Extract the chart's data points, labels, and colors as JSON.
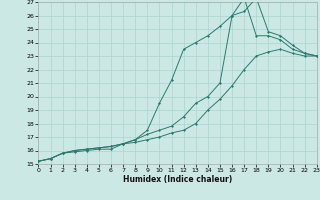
{
  "xlabel": "Humidex (Indice chaleur)",
  "background_color": "#cce8e5",
  "grid_color": "#aad4d0",
  "line_color": "#2a7a6e",
  "xlim": [
    0,
    23
  ],
  "ylim": [
    15,
    27
  ],
  "xticks": [
    0,
    1,
    2,
    3,
    4,
    5,
    6,
    7,
    8,
    9,
    10,
    11,
    12,
    13,
    14,
    15,
    16,
    17,
    18,
    19,
    20,
    21,
    22,
    23
  ],
  "yticks": [
    15,
    16,
    17,
    18,
    19,
    20,
    21,
    22,
    23,
    24,
    25,
    26,
    27
  ],
  "line1_x": [
    0,
    1,
    2,
    3,
    4,
    5,
    6,
    7,
    8,
    9,
    10,
    11,
    12,
    13,
    14,
    15,
    16,
    17,
    18,
    19,
    20,
    21,
    22,
    23
  ],
  "line1_y": [
    15.2,
    15.4,
    15.8,
    16.0,
    16.1,
    16.2,
    16.3,
    16.5,
    16.6,
    16.8,
    17.0,
    17.3,
    17.5,
    18.0,
    19.0,
    19.8,
    20.8,
    22.0,
    23.0,
    23.3,
    23.5,
    23.2,
    23.0,
    23.0
  ],
  "line2_x": [
    0,
    1,
    2,
    3,
    4,
    5,
    6,
    7,
    8,
    9,
    10,
    11,
    12,
    13,
    14,
    15,
    16,
    17,
    18,
    19,
    20,
    21,
    22,
    23
  ],
  "line2_y": [
    15.2,
    15.4,
    15.8,
    16.0,
    16.1,
    16.2,
    16.3,
    16.5,
    16.8,
    17.5,
    19.5,
    21.2,
    23.5,
    24.0,
    24.5,
    25.2,
    26.0,
    27.3,
    24.5,
    24.5,
    24.2,
    23.5,
    23.2,
    23.0
  ],
  "line3_x": [
    0,
    1,
    2,
    3,
    4,
    5,
    6,
    7,
    8,
    9,
    10,
    11,
    12,
    13,
    14,
    15,
    16,
    17,
    18,
    19,
    20,
    21,
    22,
    23
  ],
  "line3_y": [
    15.2,
    15.4,
    15.8,
    15.9,
    16.0,
    16.1,
    16.1,
    16.5,
    16.8,
    17.2,
    17.5,
    17.8,
    18.5,
    19.5,
    20.0,
    21.0,
    26.0,
    26.3,
    27.3,
    24.8,
    24.5,
    23.8,
    23.2,
    23.0
  ]
}
